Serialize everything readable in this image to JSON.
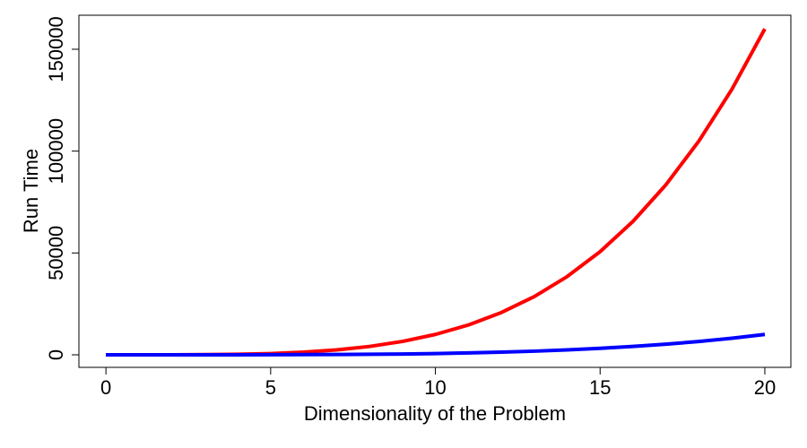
{
  "chart_data": {
    "type": "line",
    "x_label": "Dimensionality of the Problem",
    "y_label": "Run Time",
    "x": [
      0,
      1,
      2,
      3,
      4,
      5,
      6,
      7,
      8,
      9,
      10,
      11,
      12,
      13,
      14,
      15,
      16,
      17,
      18,
      19,
      20
    ],
    "series": [
      {
        "color": "#ff0000",
        "values": [
          0,
          1,
          16,
          81,
          256,
          625,
          1296,
          2401,
          4096,
          6561,
          10000,
          14641,
          20736,
          28561,
          38416,
          50625,
          65536,
          83521,
          104976,
          130321,
          160000
        ]
      },
      {
        "color": "#0000ff",
        "values": [
          0,
          0,
          1,
          5,
          16,
          39,
          81,
          150,
          256,
          410,
          625,
          915,
          1296,
          1785,
          2401,
          3164,
          4096,
          5220,
          6561,
          8145,
          10000
        ]
      }
    ],
    "xlim": [
      -0.82,
      20.79
    ],
    "xticks": [
      0,
      5,
      10,
      15,
      20
    ],
    "ylim": [
      -6160,
      166700
    ],
    "yticks": [
      0,
      50000,
      100000,
      150000
    ]
  }
}
